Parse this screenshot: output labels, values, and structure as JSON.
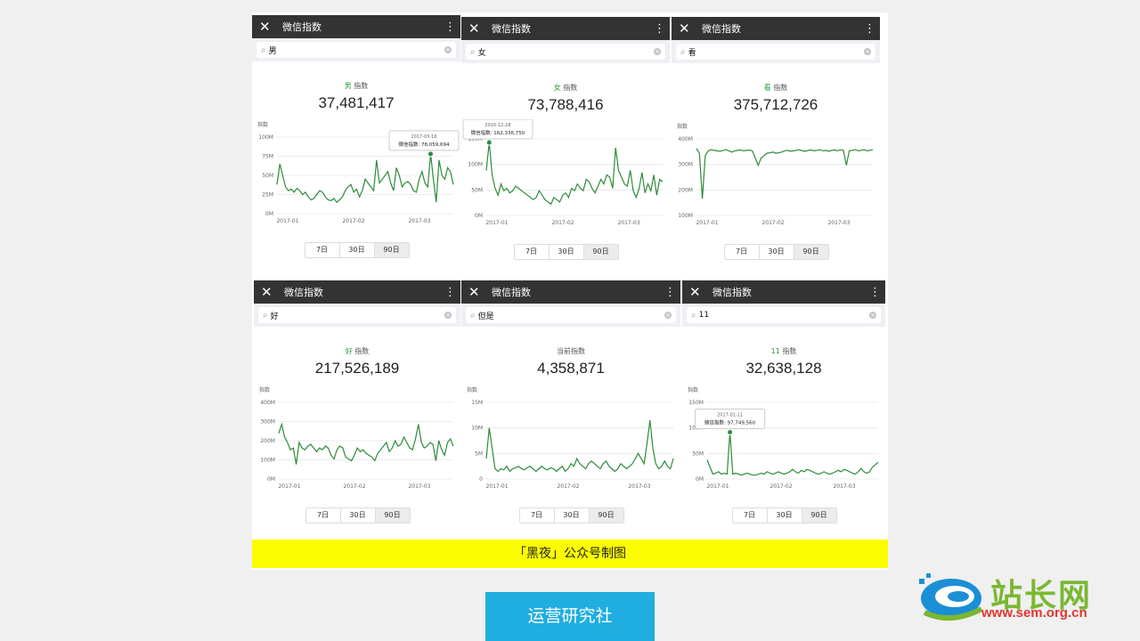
{
  "panels": [
    {
      "title": "微信指数",
      "query": "男",
      "keyword": "男",
      "index_label": "指数",
      "value": "37,481,417",
      "tooltip": {
        "date": "2017-03-16",
        "label": "微信指数:",
        "value": "78,059,694"
      },
      "y_axis_title": "指数",
      "tabs": [
        "7日",
        "30日",
        "90日"
      ],
      "selected_tab": "90日"
    },
    {
      "title": "微信指数",
      "query": "女",
      "keyword": "女",
      "index_label": "指数",
      "value": "73,788,416",
      "tooltip": {
        "date": "2016-12-28",
        "label": "微信指数:",
        "value": "162,336,750"
      },
      "y_axis_title": "指数",
      "tabs": [
        "7日",
        "30日",
        "90日"
      ],
      "selected_tab": "90日"
    },
    {
      "title": "微信指数",
      "query": "看",
      "keyword": "看",
      "index_label": "指数",
      "value": "375,712,726",
      "y_axis_title": "指数",
      "tabs": [
        "7日",
        "30日",
        "90日"
      ],
      "selected_tab": "90日"
    },
    {
      "title": "微信指数",
      "query": "好",
      "keyword": "好",
      "index_label": "指数",
      "value": "217,526,189",
      "y_axis_title": "指数",
      "tabs": [
        "7日",
        "30日",
        "90日"
      ],
      "selected_tab": "90日"
    },
    {
      "title": "微信指数",
      "query": "但是",
      "keyword": "",
      "index_label": "当前指数",
      "value": "4,358,871",
      "y_axis_title": "指数",
      "tabs": [
        "7日",
        "30日",
        "90日"
      ],
      "selected_tab": "90日"
    },
    {
      "title": "微信指数",
      "query": "11",
      "keyword": "11",
      "index_label": "指数",
      "value": "32,638,128",
      "tooltip": {
        "date": "2017-01-11",
        "label": "微信指数:",
        "value": "97,749,560"
      },
      "y_axis_title": "指数",
      "tabs": [
        "7日",
        "30日",
        "90日"
      ],
      "selected_tab": "90日"
    }
  ],
  "chart_data": [
    {
      "type": "line",
      "ylabel": "指数",
      "yticks": [
        "0M",
        "25M",
        "50M",
        "75M",
        "100M"
      ],
      "ylim": [
        0,
        100000000
      ],
      "xticks": [
        "2017-01",
        "2017-02",
        "2017-03"
      ],
      "series": [
        {
          "values": [
            38,
            65,
            50,
            35,
            30,
            32,
            28,
            33,
            30,
            25,
            28,
            22,
            18,
            20,
            25,
            30,
            28,
            22,
            18,
            17,
            20,
            15,
            18,
            22,
            30,
            35,
            38,
            28,
            32,
            22,
            30,
            45,
            40,
            35,
            30,
            70,
            40,
            45,
            50,
            55,
            40,
            30,
            60,
            50,
            35,
            40,
            42,
            38,
            30,
            28,
            45,
            55,
            40,
            35,
            78,
            45,
            15,
            70,
            50,
            45,
            60,
            55,
            38
          ]
        }
      ],
      "color": "#2e8b3a"
    },
    {
      "type": "line",
      "ylabel": "指数",
      "yticks": [
        "0M",
        "50M",
        "100M",
        "150M"
      ],
      "ylim": [
        0,
        170000000
      ],
      "xticks": [
        "2017-01",
        "2017-02",
        "2017-03"
      ],
      "series": [
        {
          "values": [
            100,
            162,
            90,
            60,
            45,
            70,
            55,
            60,
            50,
            55,
            65,
            60,
            55,
            50,
            45,
            40,
            35,
            40,
            55,
            45,
            35,
            30,
            25,
            40,
            35,
            30,
            45,
            50,
            40,
            60,
            55,
            70,
            60,
            55,
            80,
            75,
            60,
            50,
            65,
            80,
            70,
            90,
            85,
            60,
            150,
            100,
            85,
            70,
            65,
            100,
            55,
            40,
            60,
            95,
            50,
            70,
            55,
            90,
            45,
            80,
            75
          ]
        }
      ],
      "color": "#2e8b3a"
    },
    {
      "type": "line",
      "ylabel": "指数",
      "yticks": [
        "100M",
        "200M",
        "300M",
        "400M"
      ],
      "ylim": [
        100000000,
        420000000
      ],
      "xticks": [
        "2017-01",
        "2017-02",
        "2017-03"
      ],
      "series": [
        {
          "values": [
            380,
            360,
            170,
            350,
            370,
            375,
            372,
            370,
            368,
            372,
            375,
            370,
            365,
            370,
            372,
            374,
            370,
            372,
            373,
            370,
            340,
            310,
            340,
            350,
            360,
            362,
            365,
            360,
            362,
            365,
            370,
            372,
            368,
            370,
            372,
            375,
            370,
            368,
            372,
            374,
            370,
            372,
            375,
            370,
            372,
            368,
            372,
            374,
            370,
            375,
            372,
            310,
            370,
            372,
            375,
            370,
            372,
            375,
            370,
            372,
            375
          ]
        }
      ],
      "color": "#2e8b3a"
    },
    {
      "type": "line",
      "ylabel": "指数",
      "yticks": [
        "0M",
        "100M",
        "200M",
        "300M",
        "400M"
      ],
      "ylim": [
        0,
        420000000
      ],
      "xticks": [
        "2017-01",
        "2017-02",
        "2017-03"
      ],
      "series": [
        {
          "values": [
            250,
            300,
            230,
            200,
            160,
            170,
            80,
            200,
            170,
            160,
            180,
            190,
            170,
            150,
            170,
            160,
            180,
            170,
            130,
            110,
            160,
            180,
            170,
            120,
            110,
            100,
            130,
            170,
            150,
            160,
            140,
            130,
            120,
            100,
            140,
            160,
            180,
            200,
            150,
            170,
            210,
            180,
            190,
            230,
            200,
            170,
            160,
            220,
            300,
            200,
            170,
            180,
            200,
            190,
            100,
            210,
            160,
            130,
            200,
            220,
            180
          ]
        }
      ],
      "color": "#2e8b3a"
    },
    {
      "type": "line",
      "ylabel": "指数",
      "yticks": [
        "0",
        "5M",
        "10M",
        "15M"
      ],
      "ylim": [
        0,
        15000000
      ],
      "xticks": [
        "2017-01",
        "2017-02",
        "2017-03"
      ],
      "series": [
        {
          "values": [
            4,
            10,
            6,
            2,
            1.5,
            2,
            1.8,
            2.5,
            1.5,
            2,
            2.2,
            2.5,
            2,
            1.8,
            2.2,
            2.5,
            2,
            1.5,
            2,
            2.5,
            2,
            1.8,
            2.2,
            2,
            1.5,
            2,
            2.5,
            1.5,
            2,
            3,
            2.5,
            4,
            3,
            2.5,
            2,
            3,
            3.5,
            3,
            2.5,
            2,
            3,
            3.5,
            2.5,
            2,
            1.5,
            2,
            3,
            2.5,
            2,
            2.5,
            3,
            4,
            5,
            4,
            3,
            7,
            11.5,
            6,
            3,
            2,
            2.5,
            3.5,
            2.5,
            2,
            4
          ]
        }
      ],
      "color": "#2e8b3a"
    },
    {
      "type": "line",
      "ylabel": "指数",
      "yticks": [
        "0M",
        "50M",
        "100M",
        "150M"
      ],
      "ylim": [
        0,
        160000000
      ],
      "xticks": [
        "2017-01",
        "2017-02",
        "2017-03"
      ],
      "series": [
        {
          "values": [
            40,
            25,
            10,
            12,
            15,
            10,
            12,
            10,
            97.7,
            10,
            12,
            10,
            8,
            10,
            12,
            10,
            8,
            8,
            10,
            12,
            10,
            15,
            12,
            10,
            12,
            15,
            12,
            10,
            12,
            15,
            20,
            15,
            12,
            18,
            15,
            20,
            18,
            15,
            12,
            10,
            12,
            15,
            12,
            10,
            12,
            15,
            18,
            15,
            20,
            18,
            15,
            12,
            10,
            15,
            22,
            15,
            12,
            15,
            25,
            30,
            35
          ]
        }
      ],
      "color": "#2e8b3a"
    }
  ],
  "caption": "「黑夜」公众号制图",
  "button_label": "运营研究社",
  "logo": {
    "name": "站长网",
    "url": "www.sem.org.cn"
  }
}
